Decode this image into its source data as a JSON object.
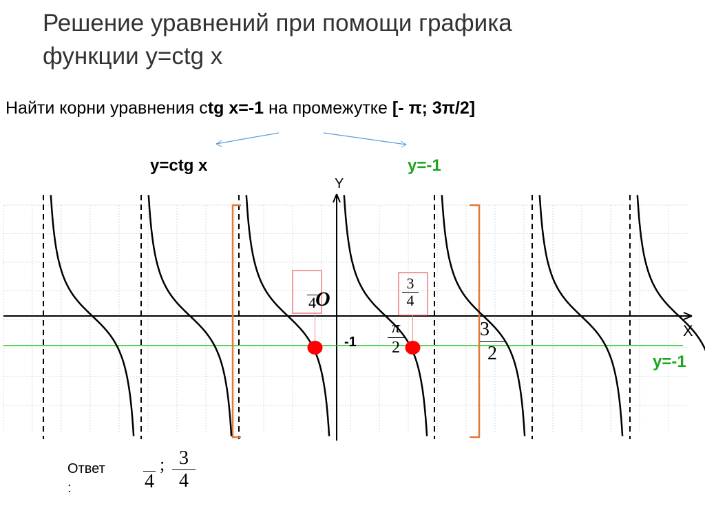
{
  "title_line1": "Решение уравнений при помощи графика",
  "title_line2": "функции y=ctg x",
  "task": {
    "prefix": "Найти корни уравнения c",
    "equation": "tg x=-1",
    "middle": " на промежутке ",
    "interval": "[- π; 3π/2]"
  },
  "graph_labels": {
    "function": "y=ctg x",
    "line_top": "y=-1",
    "line_right": "y=-1",
    "y_axis": "Y",
    "x_axis": "X",
    "origin": "O",
    "minus_one": "-1"
  },
  "fractions": {
    "root1_den": "4",
    "root2_num": "3",
    "root2_den": "4",
    "half_pi_num": "π",
    "half_pi_den": "2",
    "three_half_num": "3",
    "three_half_den": "2"
  },
  "answer": {
    "label": "Ответ",
    "colon": ":",
    "first_den": "4",
    "separator": ";",
    "second_num": "3",
    "second_den": "4"
  },
  "colors": {
    "curve": "#000000",
    "line": "#22c322",
    "label_green": "#1fa51f",
    "bracket": "#e07b39",
    "root": "#ff0000",
    "arrow": "#5b9bd5"
  }
}
